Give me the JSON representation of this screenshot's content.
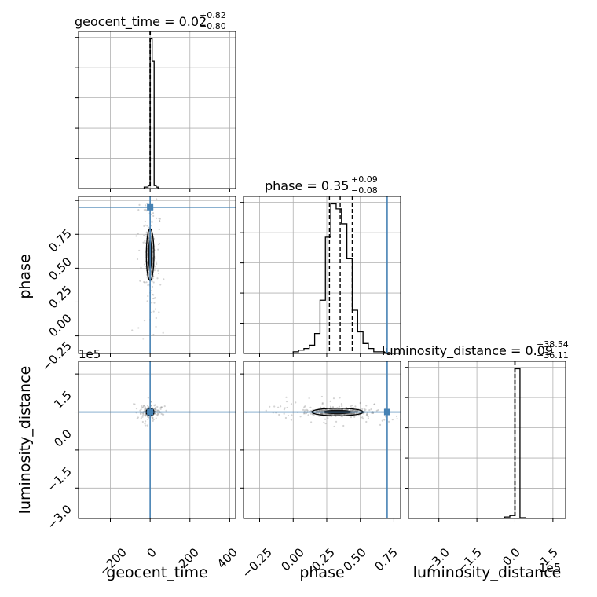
{
  "figure_type": "corner plot",
  "colors": {
    "truth": "#4682b4",
    "hist": "#000000",
    "grid": "#b0b0b0",
    "samples": "#808080"
  },
  "chart_data": [
    {
      "type": "bar",
      "panel": "geocent_time histogram",
      "title_main": "geocent_time = 0.02",
      "title_sup": "+0.82",
      "title_sub": "−0.80",
      "xlim": [
        -360,
        430
      ],
      "xticks": [
        -200,
        0,
        200,
        400
      ],
      "bin_edges": [
        -30,
        -20,
        -10,
        0,
        10,
        20,
        30,
        40
      ],
      "values": [
        1,
        1,
        2,
        100,
        85,
        2,
        1
      ],
      "quantiles": [
        -0.78,
        0.02,
        0.84
      ],
      "grid": true
    },
    {
      "type": "bar",
      "panel": "phase histogram",
      "title_main": "phase = 0.35",
      "title_sup": "+0.09",
      "title_sub": "−0.08",
      "xlim": [
        -0.37,
        0.8
      ],
      "xticks": [
        -0.25,
        0.0,
        0.25,
        0.5,
        0.75
      ],
      "truth": 0.7,
      "bin_edges": [
        0.0,
        0.04,
        0.08,
        0.12,
        0.16,
        0.2,
        0.24,
        0.28,
        0.32,
        0.36,
        0.4,
        0.44,
        0.48,
        0.52,
        0.56,
        0.6,
        0.64,
        0.68,
        0.72
      ],
      "values": [
        1,
        2,
        3,
        5,
        12,
        32,
        70,
        90,
        87,
        78,
        57,
        26,
        13,
        6,
        3,
        1,
        1,
        0.5
      ],
      "quantiles": [
        0.27,
        0.35,
        0.44
      ],
      "grid": true
    },
    {
      "type": "bar",
      "panel": "luminosity_distance histogram",
      "title_main": "luminosity_distance = 0.09",
      "title_sup": "+38.54",
      "title_sub": "−36.11",
      "xlim": [
        -420000,
        200000
      ],
      "xticks": [
        -300000,
        -150000,
        0,
        150000
      ],
      "xtick_labels": [
        "−3.0",
        "−1.5",
        "0.0",
        "1.5"
      ],
      "bin_edges": [
        -40000,
        -20000,
        0,
        20000,
        40000
      ],
      "values": [
        1,
        2,
        100,
        0.5
      ],
      "quantiles": [
        -36.02,
        0.09,
        38.63
      ],
      "offset_label": "1e5",
      "grid": true
    },
    {
      "type": "scatter",
      "panel": "phase vs geocent_time",
      "xlim": [
        -360,
        430
      ],
      "ylim": [
        -0.38,
        0.78
      ],
      "yticks": [
        -0.25,
        0.0,
        0.25,
        0.5,
        0.75
      ],
      "truth_x": 0,
      "truth_y": 0.7,
      "center": [
        0,
        0.35
      ],
      "spread": [
        8,
        0.08
      ],
      "grid": true
    },
    {
      "type": "scatter",
      "panel": "luminosity_distance vs geocent_time",
      "xlim": [
        -360,
        430
      ],
      "ylim": [
        -420000,
        200000
      ],
      "yticks": [
        -300000,
        -150000,
        0,
        150000
      ],
      "ytick_labels": [
        "−3.0",
        "−1.5",
        "0.0",
        "1.5"
      ],
      "offset_label": "1e5",
      "truth_x": 0,
      "truth_y": 0,
      "center": [
        0,
        0
      ],
      "spread": [
        8,
        5000
      ],
      "grid": true
    },
    {
      "type": "scatter",
      "panel": "luminosity_distance vs phase",
      "xlim": [
        -0.37,
        0.8
      ],
      "ylim": [
        -420000,
        200000
      ],
      "truth_x": 0.7,
      "truth_y": 0,
      "center": [
        0.33,
        0
      ],
      "spread": [
        0.08,
        6000
      ],
      "grid": true
    }
  ],
  "axes": {
    "x1_label": "geocent_time",
    "x2_label": "phase",
    "x3_label": "luminosity_distance",
    "y2_label": "phase",
    "y3_label": "luminosity_distance",
    "offset_label": "1e5",
    "ticks_geocent": [
      "−200",
      "0",
      "200",
      "400"
    ],
    "ticks_phase": [
      "−0.25",
      "0.00",
      "0.25",
      "0.50",
      "0.75"
    ],
    "ticks_lum": [
      "−3.0",
      "−1.5",
      "0.0",
      "1.5"
    ]
  }
}
